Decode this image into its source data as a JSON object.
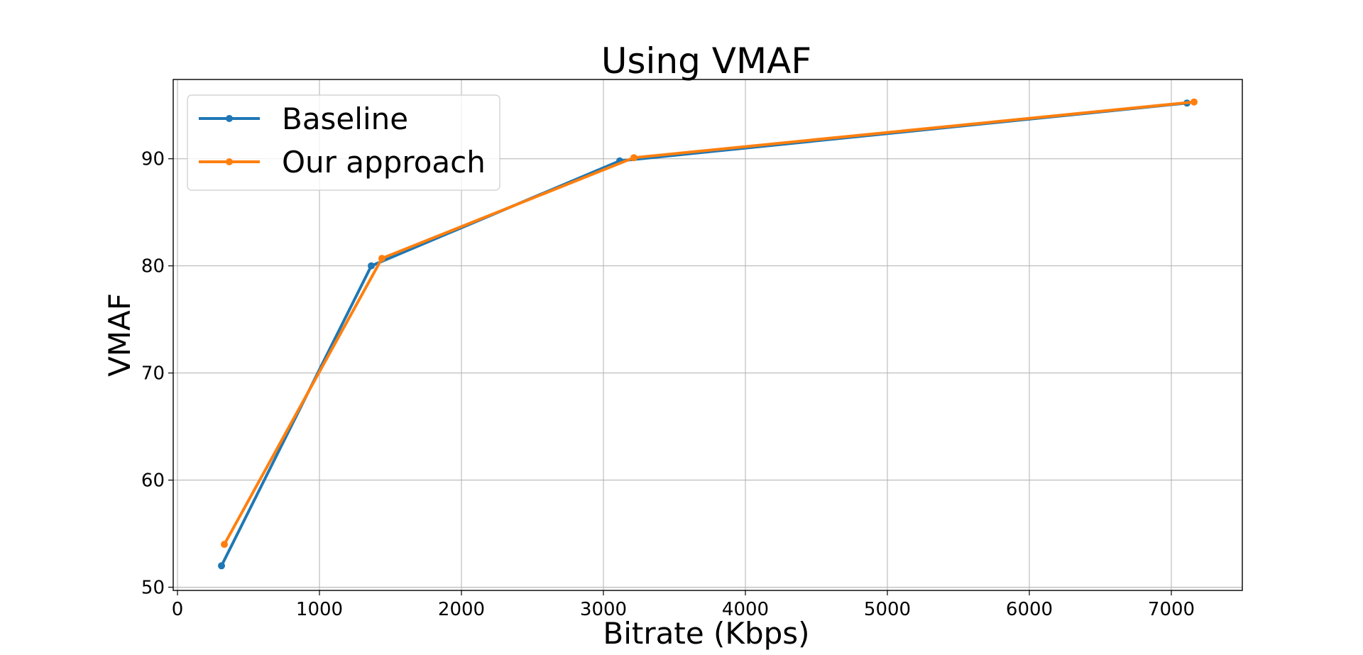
{
  "chart_data": {
    "type": "line",
    "title": "Using VMAF",
    "xlabel": "Bitrate (Kbps)",
    "ylabel": "VMAF",
    "xlim": [
      -30,
      7500
    ],
    "ylim": [
      49.7,
      97.4
    ],
    "xticks": [
      0,
      1000,
      2000,
      3000,
      4000,
      5000,
      6000,
      7000
    ],
    "yticks": [
      50,
      60,
      70,
      80,
      90
    ],
    "grid": true,
    "legend_position": "upper-left",
    "series": [
      {
        "name": "Baseline",
        "color": "#1f77b4",
        "x": [
          310,
          1365,
          3115,
          7110
        ],
        "y": [
          52.0,
          80.0,
          89.8,
          95.2
        ]
      },
      {
        "name": "Our approach",
        "color": "#ff7f0e",
        "x": [
          330,
          1440,
          3215,
          7160
        ],
        "y": [
          54.0,
          80.7,
          90.1,
          95.3
        ]
      }
    ]
  }
}
